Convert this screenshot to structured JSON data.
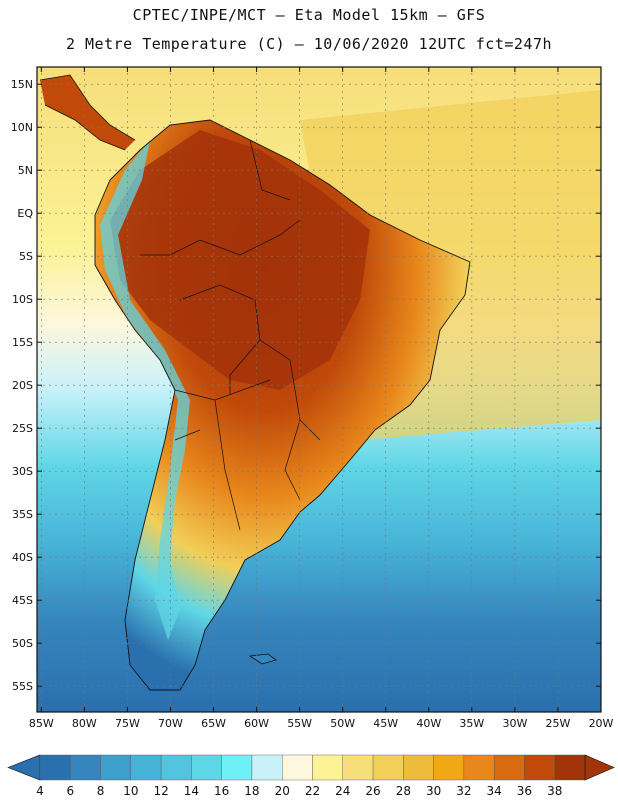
{
  "title": {
    "line1": "CPTEC/INPE/MCT –  Eta Model 15km – GFS",
    "line2": "2 Metre Temperature (C) – 10/06/2020 12UTC fct=247h"
  },
  "map": {
    "lat_labels": [
      "15N",
      "10N",
      "5N",
      "EQ",
      "5S",
      "10S",
      "15S",
      "20S",
      "25S",
      "30S",
      "35S",
      "40S",
      "45S",
      "50S",
      "55S"
    ],
    "lat_values": [
      15,
      10,
      5,
      0,
      -5,
      -10,
      -15,
      -20,
      -25,
      -30,
      -35,
      -40,
      -45,
      -50,
      -55
    ],
    "lon_labels": [
      "85W",
      "80W",
      "75W",
      "70W",
      "65W",
      "60W",
      "55W",
      "50W",
      "45W",
      "40W",
      "35W",
      "30W",
      "25W",
      "20W"
    ],
    "lon_values": [
      -85,
      -80,
      -75,
      -70,
      -65,
      -60,
      -55,
      -50,
      -45,
      -40,
      -35,
      -30,
      -25,
      -20
    ],
    "extent": {
      "lon_min": -85.5,
      "lon_max": -20,
      "lat_min": -58,
      "lat_max": 17
    }
  },
  "colorbar": {
    "labels": [
      "4",
      "6",
      "8",
      "10",
      "12",
      "14",
      "16",
      "18",
      "20",
      "22",
      "24",
      "26",
      "28",
      "30",
      "32",
      "34",
      "36",
      "38"
    ],
    "colors": [
      "#2a6fae",
      "#3685bd",
      "#3f9fcc",
      "#47b3d8",
      "#52c4df",
      "#5fd6e6",
      "#6ff0f6",
      "#c8f1fa",
      "#fdf7de",
      "#fcf296",
      "#f6de7a",
      "#f1cf58",
      "#ecbc3a",
      "#f0a814",
      "#e8881b",
      "#d86a10",
      "#c14a0a",
      "#a33309"
    ]
  }
}
